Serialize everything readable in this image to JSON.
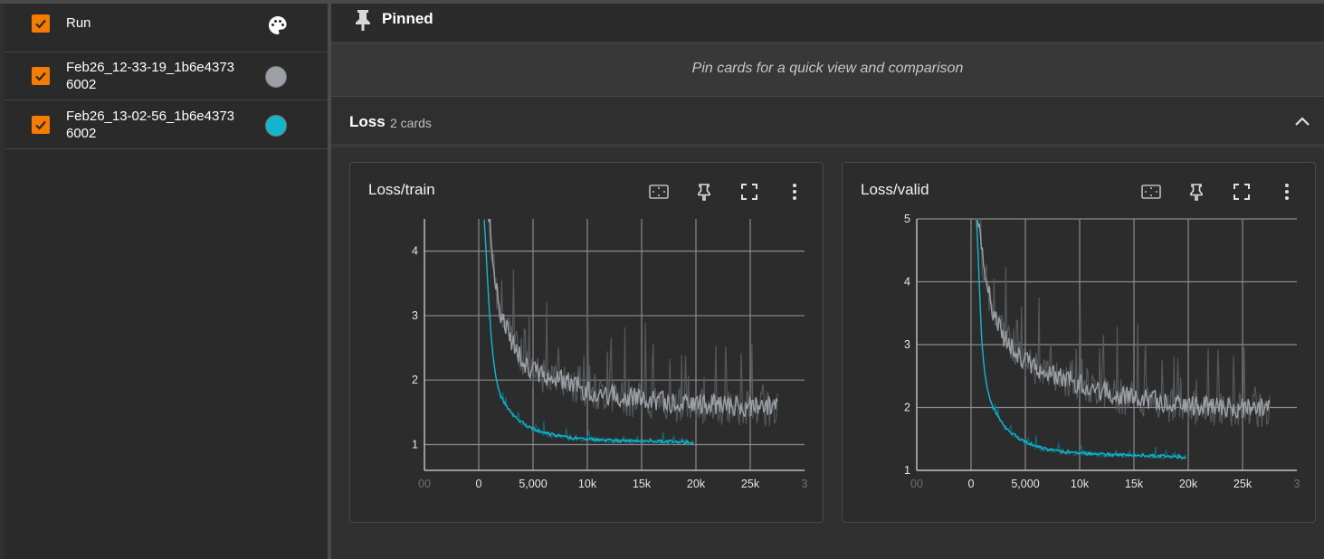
{
  "sidebar": {
    "header": {
      "label": "Run",
      "palette_icon": "palette-icon"
    },
    "runs": [
      {
        "line1": "Feb26_12-33-19_1b6e4373",
        "line2": "6002",
        "color": "#9aa0a6",
        "checked": true
      },
      {
        "line1": "Feb26_13-02-56_1b6e4373",
        "line2": "6002",
        "color": "#12b5cb",
        "checked": true
      }
    ]
  },
  "pinned": {
    "title": "Pinned",
    "empty_text": "Pin cards for a quick view and comparison"
  },
  "group": {
    "title": "Loss",
    "count_label": "2 cards"
  },
  "cards": [
    {
      "title": "Loss/train"
    },
    {
      "title": "Loss/valid"
    }
  ],
  "chart_data": [
    {
      "type": "line",
      "title": "Loss/train",
      "x_ticks": [
        "00",
        "0",
        "5,000",
        "10k",
        "15k",
        "20k",
        "25k",
        "3"
      ],
      "y_ticks": [
        "1",
        "2",
        "3",
        "4"
      ],
      "xlim": [
        -5000,
        30000
      ],
      "ylim": [
        0.6,
        4.5
      ],
      "grid": true,
      "series": [
        {
          "color": "#9aa0a6",
          "x": [
            500,
            1000,
            1500,
            2000,
            3000,
            4000,
            5000,
            6000,
            8000,
            10000,
            12000,
            14000,
            16000,
            18000,
            20000,
            22000,
            24000,
            26000,
            27500
          ],
          "y": [
            4.6,
            4.4,
            3.5,
            3.0,
            2.6,
            2.3,
            2.1,
            2.05,
            1.95,
            1.8,
            1.75,
            1.7,
            1.65,
            1.62,
            1.6,
            1.58,
            1.57,
            1.56,
            1.55
          ]
        },
        {
          "color": "#12b5cb",
          "x": [
            500,
            800,
            1000,
            1300,
            1600,
            2000,
            2500,
            3000,
            4000,
            5000,
            6000,
            7000,
            8000,
            10000,
            12000,
            14000,
            16000,
            18000,
            19800
          ],
          "y": [
            4.5,
            3.6,
            3.0,
            2.4,
            2.0,
            1.75,
            1.6,
            1.48,
            1.33,
            1.24,
            1.18,
            1.14,
            1.11,
            1.08,
            1.06,
            1.05,
            1.05,
            1.04,
            1.03
          ]
        }
      ]
    },
    {
      "type": "line",
      "title": "Loss/valid",
      "x_ticks": [
        "00",
        "0",
        "5,000",
        "10k",
        "15k",
        "20k",
        "25k",
        "3"
      ],
      "y_ticks": [
        "1",
        "2",
        "3",
        "4",
        "5"
      ],
      "xlim": [
        -5000,
        30000
      ],
      "ylim": [
        1.0,
        5.0
      ],
      "grid": true,
      "series": [
        {
          "color": "#9aa0a6",
          "x": [
            500,
            800,
            1000,
            1500,
            2000,
            3000,
            4000,
            5000,
            6000,
            8000,
            10000,
            12000,
            14000,
            16000,
            18000,
            20000,
            22000,
            24000,
            26000,
            27500
          ],
          "y": [
            5.0,
            4.8,
            4.4,
            3.9,
            3.5,
            3.1,
            2.9,
            2.7,
            2.6,
            2.45,
            2.35,
            2.25,
            2.15,
            2.1,
            2.05,
            2.0,
            1.98,
            1.97,
            1.96,
            1.95
          ]
        },
        {
          "color": "#12b5cb",
          "x": [
            500,
            800,
            1000,
            1300,
            1600,
            2000,
            2500,
            3000,
            4000,
            5000,
            6000,
            7000,
            8000,
            10000,
            12000,
            14000,
            16000,
            18000,
            19800
          ],
          "y": [
            5.0,
            3.8,
            3.0,
            2.5,
            2.2,
            2.0,
            1.85,
            1.7,
            1.55,
            1.45,
            1.38,
            1.33,
            1.3,
            1.27,
            1.25,
            1.24,
            1.23,
            1.22,
            1.21
          ]
        }
      ]
    }
  ]
}
